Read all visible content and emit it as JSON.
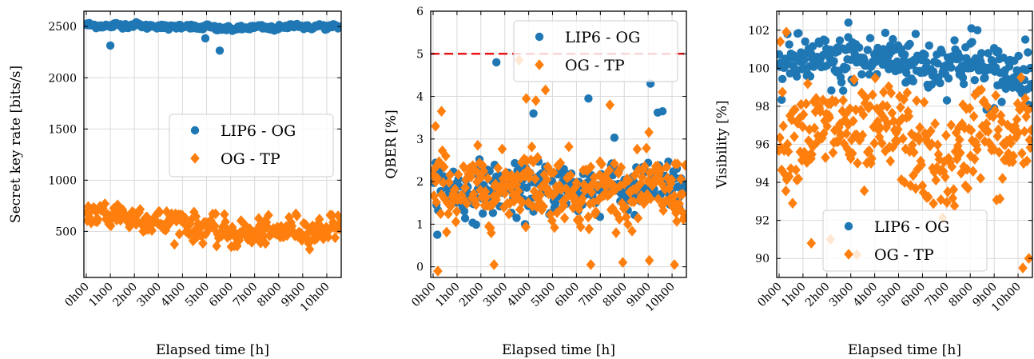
{
  "colors": {
    "lip6_og": "#1f77b4",
    "og_tp": "#ff7f0e",
    "threshold": "#e8161b"
  },
  "chart_data": [
    {
      "type": "scatter",
      "xlabel": "Elapsed time [h]",
      "ylabel": "Secret key rate [bits/s]",
      "xlim": [
        -0.1,
        10.6
      ],
      "ylim": [
        50,
        2650
      ],
      "xticks": [
        0,
        1,
        2,
        3,
        4,
        5,
        6,
        7,
        8,
        9,
        10
      ],
      "xtick_labels": [
        "0h00",
        "1h00",
        "2h00",
        "3h00",
        "4h00",
        "5h00",
        "6h00",
        "7h00",
        "8h00",
        "9h00",
        "10h00"
      ],
      "yticks": [
        500,
        1000,
        1500,
        2000,
        2500
      ],
      "ytick_labels": [
        "500",
        "1000",
        "1500",
        "2000",
        "2500"
      ],
      "grid": true,
      "legend": {
        "position": "center-right",
        "entries": [
          "LIP6 - OG",
          "OG - TP"
        ]
      },
      "series": [
        {
          "name": "LIP6 - OG",
          "marker": "circle",
          "color": "#1f77b4",
          "x": [
            0,
            0.25,
            0.5,
            0.75,
            1,
            1.25,
            1.5,
            1.75,
            2,
            2.25,
            2.5,
            2.75,
            3,
            3.25,
            3.5,
            3.75,
            4,
            4.25,
            4.5,
            4.75,
            5,
            5.25,
            5.5,
            5.75,
            6,
            6.25,
            6.5,
            6.75,
            7,
            7.25,
            7.5,
            7.75,
            8,
            8.25,
            8.5,
            8.75,
            9,
            9.25,
            9.5,
            9.75,
            10,
            10.25,
            10.5
          ],
          "y": [
            2520,
            2515,
            2505,
            2510,
            2500,
            2522,
            2512,
            2508,
            2520,
            2514,
            2498,
            2510,
            2505,
            2495,
            2490,
            2500,
            2508,
            2512,
            2490,
            2485,
            2505,
            2490,
            2475,
            2480,
            2470,
            2485,
            2480,
            2488,
            2492,
            2496,
            2485,
            2478,
            2490,
            2486,
            2512,
            2520,
            2496,
            2488,
            2500,
            2510,
            2492,
            2505,
            2495
          ],
          "outliers": [
            [
              1.0,
              2315
            ],
            [
              4.95,
              2385
            ],
            [
              5.55,
              2265
            ]
          ]
        },
        {
          "name": "OG - TP",
          "marker": "diamond",
          "color": "#ff7f0e",
          "x": [
            0,
            0.25,
            0.5,
            0.75,
            1,
            1.25,
            1.5,
            1.75,
            2,
            2.25,
            2.5,
            2.75,
            3,
            3.25,
            3.5,
            3.75,
            4,
            4.25,
            4.5,
            4.75,
            5,
            5.25,
            5.5,
            5.75,
            6,
            6.25,
            6.5,
            6.75,
            7,
            7.25,
            7.5,
            7.75,
            8,
            8.25,
            8.5,
            8.75,
            9,
            9.25,
            9.5,
            9.75,
            10,
            10.25,
            10.5
          ],
          "y": [
            660,
            700,
            640,
            710,
            620,
            680,
            690,
            600,
            640,
            670,
            610,
            590,
            600,
            560,
            620,
            590,
            630,
            560,
            540,
            510,
            570,
            520,
            470,
            520,
            470,
            450,
            500,
            480,
            430,
            520,
            480,
            470,
            490,
            510,
            530,
            540,
            500,
            520,
            480,
            520,
            530,
            560,
            580
          ],
          "spread": 130
        }
      ]
    },
    {
      "type": "scatter",
      "xlabel": "Elapsed time [h]",
      "ylabel": "QBER [%]",
      "xlim": [
        -0.1,
        10.6
      ],
      "ylim": [
        -0.25,
        6.0
      ],
      "xticks": [
        0,
        1,
        2,
        3,
        4,
        5,
        6,
        7,
        8,
        9,
        10
      ],
      "xtick_labels": [
        "0h00",
        "1h00",
        "2h00",
        "3h00",
        "4h00",
        "5h00",
        "6h00",
        "7h00",
        "8h00",
        "9h00",
        "10h00"
      ],
      "yticks": [
        0,
        1,
        2,
        3,
        4,
        5,
        6
      ],
      "ytick_labels": [
        "0",
        "1",
        "2",
        "3",
        "4",
        "5",
        "6"
      ],
      "grid": true,
      "threshold_line": {
        "y": 5,
        "style": "dashed"
      },
      "legend": {
        "position": "top-right",
        "entries": [
          "LIP6 - OG",
          "OG - TP"
        ]
      },
      "series": [
        {
          "name": "LIP6 - OG",
          "marker": "circle",
          "color": "#1f77b4",
          "x": [
            0,
            0.5,
            1,
            1.5,
            2,
            2.5,
            3,
            3.5,
            4,
            4.5,
            5,
            5.5,
            6,
            6.5,
            7,
            7.5,
            8,
            8.5,
            9,
            9.5,
            10,
            10.5
          ],
          "y": [
            1.7,
            1.9,
            1.8,
            1.6,
            1.9,
            1.8,
            1.9,
            1.7,
            1.8,
            1.9,
            1.8,
            2.0,
            1.7,
            1.9,
            1.8,
            2.1,
            1.8,
            1.7,
            2.0,
            1.9,
            1.9,
            1.8
          ],
          "spread": 0.6,
          "outliers": [
            [
              2.65,
              4.8
            ],
            [
              6.5,
              3.95
            ],
            [
              9.1,
              4.3
            ],
            [
              9.4,
              3.62
            ],
            [
              9.6,
              3.65
            ],
            [
              4.2,
              3.6
            ]
          ]
        },
        {
          "name": "OG - TP",
          "marker": "diamond",
          "color": "#ff7f0e",
          "x": [
            0,
            0.5,
            1,
            1.5,
            2,
            2.5,
            3,
            3.5,
            4,
            4.5,
            5,
            5.5,
            6,
            6.5,
            7,
            7.5,
            8,
            8.5,
            9,
            9.5,
            10,
            10.5
          ],
          "y": [
            1.8,
            1.9,
            1.7,
            1.8,
            1.9,
            1.8,
            1.8,
            2.0,
            2.1,
            1.9,
            1.8,
            1.9,
            1.8,
            1.7,
            1.9,
            1.8,
            1.7,
            1.8,
            1.9,
            1.8,
            1.7,
            1.8
          ],
          "spread": 0.8,
          "outliers": [
            [
              0.2,
              -0.1
            ],
            [
              0.1,
              3.3
            ],
            [
              0.35,
              3.65
            ],
            [
              4.7,
              4.15
            ],
            [
              3.9,
              3.95
            ],
            [
              4.3,
              3.9
            ],
            [
              7.4,
              3.8
            ],
            [
              10.1,
              0.05
            ],
            [
              9.05,
              0.15
            ],
            [
              2.55,
              0.05
            ],
            [
              6.6,
              0.05
            ],
            [
              3.6,
              4.85
            ]
          ]
        }
      ]
    },
    {
      "type": "scatter",
      "xlabel": "Elapsed time [h]",
      "ylabel": "Visibility [%]",
      "xlim": [
        -0.1,
        10.6
      ],
      "ylim": [
        89.0,
        103.0
      ],
      "xticks": [
        0,
        1,
        2,
        3,
        4,
        5,
        6,
        7,
        8,
        9,
        10
      ],
      "xtick_labels": [
        "0h00",
        "1h00",
        "2h00",
        "3h00",
        "4h00",
        "5h00",
        "6h00",
        "7h00",
        "8h00",
        "9h00",
        "10h00"
      ],
      "yticks": [
        90,
        92,
        94,
        96,
        98,
        100,
        102
      ],
      "ytick_labels": [
        "90",
        "92",
        "94",
        "96",
        "98",
        "100",
        "102"
      ],
      "grid": true,
      "legend": {
        "position": "lower-center",
        "entries": [
          "LIP6 - OG",
          "OG - TP"
        ]
      },
      "series": [
        {
          "name": "LIP6 - OG",
          "marker": "circle",
          "color": "#1f77b4",
          "x": [
            0,
            0.5,
            1,
            1.5,
            2,
            2.5,
            3,
            3.5,
            4,
            4.5,
            5,
            5.5,
            6,
            6.5,
            7,
            7.5,
            8,
            8.5,
            9,
            9.5,
            10,
            10.5
          ],
          "y": [
            99.8,
            100.3,
            100.5,
            100.2,
            100.4,
            100.1,
            100.6,
            100.3,
            100.4,
            100.7,
            100.5,
            100.4,
            100.2,
            100.0,
            100.3,
            100.5,
            100.1,
            99.9,
            99.8,
            99.7,
            99.9,
            99.8
          ],
          "spread": 1.4,
          "outliers": [
            [
              2.9,
              102.4
            ],
            [
              8.05,
              102.1
            ],
            [
              8.3,
              102.0
            ],
            [
              9.0,
              97.9
            ]
          ]
        },
        {
          "name": "OG - TP",
          "marker": "diamond",
          "color": "#ff7f0e",
          "x": [
            0,
            0.5,
            1,
            1.5,
            2,
            2.5,
            3,
            3.5,
            4,
            4.5,
            5,
            5.5,
            6,
            6.5,
            7,
            7.5,
            8,
            8.5,
            9,
            9.5,
            10,
            10.5
          ],
          "y": [
            95.8,
            96.2,
            97.0,
            96.5,
            96.8,
            97.0,
            96.5,
            96.0,
            96.4,
            96.8,
            96.6,
            96.2,
            95.4,
            94.8,
            94.6,
            95.0,
            96.5,
            97.2,
            96.0,
            95.5,
            96.8,
            96.5
          ],
          "spread": 2.6,
          "outliers": [
            [
              0.05,
              101.4
            ],
            [
              0.3,
              101.9
            ],
            [
              10.2,
              89.5
            ],
            [
              10.45,
              90.0
            ],
            [
              1.35,
              90.8
            ],
            [
              2.15,
              91.0
            ],
            [
              3.25,
              90.2
            ],
            [
              8.2,
              98.6
            ]
          ]
        }
      ]
    }
  ]
}
